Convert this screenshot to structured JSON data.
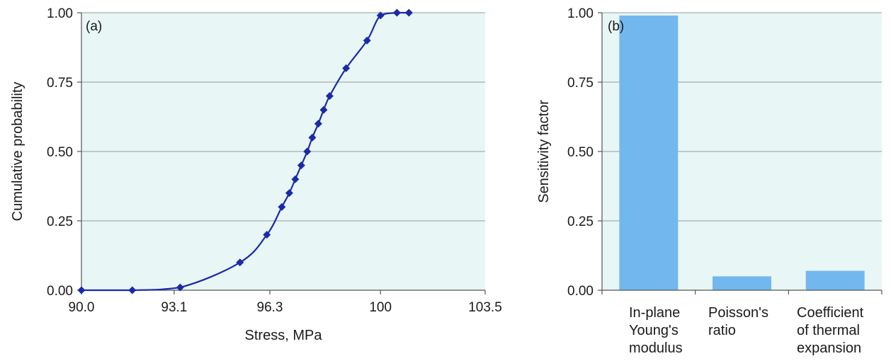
{
  "chart_data": [
    {
      "type": "line",
      "panel_label": "(a)",
      "xlabel": "Stress, MPa",
      "ylabel": "Cumulative probability",
      "xlim": [
        90.0,
        103.5
      ],
      "ylim": [
        0,
        1
      ],
      "x_ticks": [
        "90.0",
        "93.1",
        "96.3",
        "100",
        "103.5"
      ],
      "x_tick_values": [
        90.0,
        93.1,
        96.3,
        100,
        103.5
      ],
      "y_ticks": [
        "0.00",
        "0.25",
        "0.50",
        "0.75",
        "1.00"
      ],
      "y_tick_values": [
        0,
        0.25,
        0.5,
        0.75,
        1.0
      ],
      "grid": "horizontal",
      "background": "#e8f6f6",
      "line_color": "#1a2aa8",
      "marker": "diamond",
      "series": [
        {
          "x": [
            90.0,
            91.7,
            93.3,
            95.3,
            96.2,
            96.7,
            96.95,
            97.15,
            97.35,
            97.55,
            97.72,
            97.92,
            98.1,
            98.3,
            98.85,
            99.55,
            100.0,
            100.55,
            100.95
          ],
          "y": [
            0.0,
            0.0,
            0.01,
            0.1,
            0.2,
            0.3,
            0.35,
            0.4,
            0.45,
            0.5,
            0.55,
            0.6,
            0.65,
            0.7,
            0.8,
            0.9,
            0.99,
            1.0,
            1.0
          ]
        }
      ]
    },
    {
      "type": "bar",
      "panel_label": "(b)",
      "xlabel": "",
      "ylabel": "Sensitivity factor",
      "ylim": [
        0,
        1
      ],
      "y_ticks": [
        "0.00",
        "0.25",
        "0.50",
        "0.75",
        "1.00"
      ],
      "y_tick_values": [
        0,
        0.25,
        0.5,
        0.75,
        1.0
      ],
      "grid": "horizontal",
      "background": "#e8f6f6",
      "bar_color": "#72b8ee",
      "categories": [
        [
          "In-plane",
          "Young's",
          "modulus"
        ],
        [
          "Poisson's",
          "ratio"
        ],
        [
          "Coefficient",
          "of thermal",
          "expansion"
        ]
      ],
      "values": [
        0.99,
        0.05,
        0.07
      ]
    }
  ]
}
